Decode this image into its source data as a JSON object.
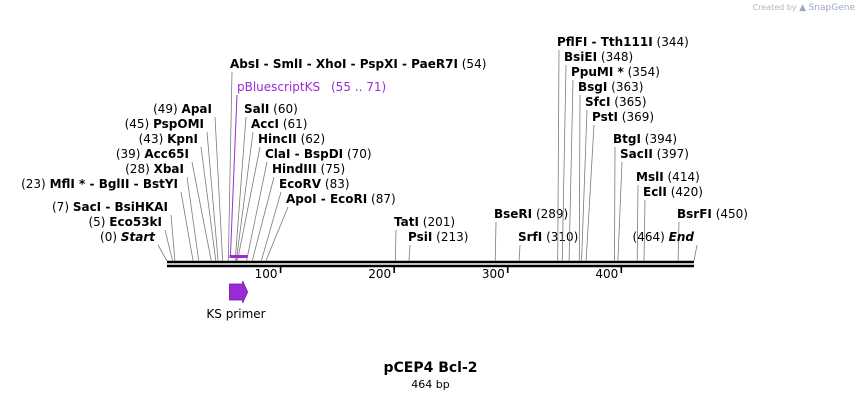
{
  "header": {
    "credit_prefix": "Created by",
    "credit_brand": "SnapGene"
  },
  "plasmid": {
    "name": "pCEP4 Bcl-2",
    "length_label": "464 bp"
  },
  "colors": {
    "line": "#000000",
    "feature": "#9b2bd6",
    "label_purple": "#9b2bd6",
    "tick_line": "#7a7a7a"
  },
  "axis": {
    "length": 464,
    "ticks": [
      {
        "pos": 100,
        "label": "100"
      },
      {
        "pos": 200,
        "label": "200"
      },
      {
        "pos": 300,
        "label": "300"
      },
      {
        "pos": 400,
        "label": "400"
      }
    ]
  },
  "features": [
    {
      "name": "pBluescriptKS",
      "range_label": "(55 .. 71)",
      "start": 55,
      "end": 71,
      "type": "region"
    },
    {
      "name": "KS primer",
      "start": 55,
      "end": 71,
      "type": "primer",
      "direction": "forward"
    }
  ],
  "labels": [
    {
      "id": "start",
      "names": [
        "Start"
      ],
      "count": "(0)",
      "pos": 0,
      "side": "left",
      "italic": true
    },
    {
      "id": "eco53ki",
      "names": [
        "Eco53kI"
      ],
      "count": "(5)",
      "pos": 5,
      "side": "left"
    },
    {
      "id": "saci",
      "names": [
        "SacI",
        "BsiHKAI"
      ],
      "count": "(7)",
      "pos": 7,
      "side": "left"
    },
    {
      "id": "mfli",
      "names": [
        "MflI *",
        "BglII",
        "BstYI"
      ],
      "count": "(23)",
      "pos": 23,
      "side": "left"
    },
    {
      "id": "xbai",
      "names": [
        "XbaI"
      ],
      "count": "(28)",
      "pos": 28,
      "side": "left"
    },
    {
      "id": "acc65i",
      "names": [
        "Acc65I"
      ],
      "count": "(39)",
      "pos": 39,
      "side": "left"
    },
    {
      "id": "kpni",
      "names": [
        "KpnI"
      ],
      "count": "(43)",
      "pos": 43,
      "side": "left"
    },
    {
      "id": "pspomi",
      "names": [
        "PspOMI"
      ],
      "count": "(45)",
      "pos": 45,
      "side": "left"
    },
    {
      "id": "apai",
      "names": [
        "ApaI"
      ],
      "count": "(49)",
      "pos": 49,
      "side": "left"
    },
    {
      "id": "absi",
      "names": [
        "AbsI",
        "SmlI",
        "XhoI",
        "PspXI",
        "PaeR7I"
      ],
      "count": "(54)",
      "pos": 54,
      "side": "right"
    },
    {
      "id": "sali",
      "names": [
        "SalI"
      ],
      "count": "(60)",
      "pos": 60,
      "side": "right"
    },
    {
      "id": "acci",
      "names": [
        "AccI"
      ],
      "count": "(61)",
      "pos": 61,
      "side": "right"
    },
    {
      "id": "hincii",
      "names": [
        "HincII"
      ],
      "count": "(62)",
      "pos": 62,
      "side": "right"
    },
    {
      "id": "clai",
      "names": [
        "ClaI",
        "BspDI"
      ],
      "count": "(70)",
      "pos": 70,
      "side": "right"
    },
    {
      "id": "hindiii",
      "names": [
        "HindIII"
      ],
      "count": "(75)",
      "pos": 75,
      "side": "right"
    },
    {
      "id": "ecorv",
      "names": [
        "EcoRV"
      ],
      "count": "(83)",
      "pos": 83,
      "side": "right"
    },
    {
      "id": "apoi",
      "names": [
        "ApoI",
        "EcoRI"
      ],
      "count": "(87)",
      "pos": 87,
      "side": "right"
    },
    {
      "id": "tati",
      "names": [
        "TatI"
      ],
      "count": "(201)",
      "pos": 201,
      "side": "right"
    },
    {
      "id": "psii",
      "names": [
        "PsiI"
      ],
      "count": "(213)",
      "pos": 213,
      "side": "right"
    },
    {
      "id": "bseri",
      "names": [
        "BseRI"
      ],
      "count": "(289)",
      "pos": 289,
      "side": "right"
    },
    {
      "id": "srfi",
      "names": [
        "SrfI"
      ],
      "count": "(310)",
      "pos": 310,
      "side": "right"
    },
    {
      "id": "pflfi",
      "names": [
        "PflFI",
        "Tth111I"
      ],
      "count": "(344)",
      "pos": 344,
      "side": "right"
    },
    {
      "id": "bsiei",
      "names": [
        "BsiEI"
      ],
      "count": "(348)",
      "pos": 348,
      "side": "right"
    },
    {
      "id": "ppumi",
      "names": [
        "PpuMI *"
      ],
      "count": "(354)",
      "pos": 354,
      "side": "right"
    },
    {
      "id": "bsgi",
      "names": [
        "BsgI"
      ],
      "count": "(363)",
      "pos": 363,
      "side": "right"
    },
    {
      "id": "sfci",
      "names": [
        "SfcI"
      ],
      "count": "(365)",
      "pos": 365,
      "side": "right"
    },
    {
      "id": "psti",
      "names": [
        "PstI"
      ],
      "count": "(369)",
      "pos": 369,
      "side": "right"
    },
    {
      "id": "btgi",
      "names": [
        "BtgI"
      ],
      "count": "(394)",
      "pos": 394,
      "side": "right"
    },
    {
      "id": "sacii",
      "names": [
        "SacII"
      ],
      "count": "(397)",
      "pos": 397,
      "side": "right"
    },
    {
      "id": "msli",
      "names": [
        "MslI"
      ],
      "count": "(414)",
      "pos": 414,
      "side": "right"
    },
    {
      "id": "ecli",
      "names": [
        "EclI"
      ],
      "count": "(420)",
      "pos": 420,
      "side": "right"
    },
    {
      "id": "bsrfi",
      "names": [
        "BsrFI"
      ],
      "count": "(450)",
      "pos": 450,
      "side": "right"
    },
    {
      "id": "end",
      "names": [
        "End"
      ],
      "count": "(464)",
      "pos": 464,
      "side": "left",
      "italic": true
    }
  ]
}
